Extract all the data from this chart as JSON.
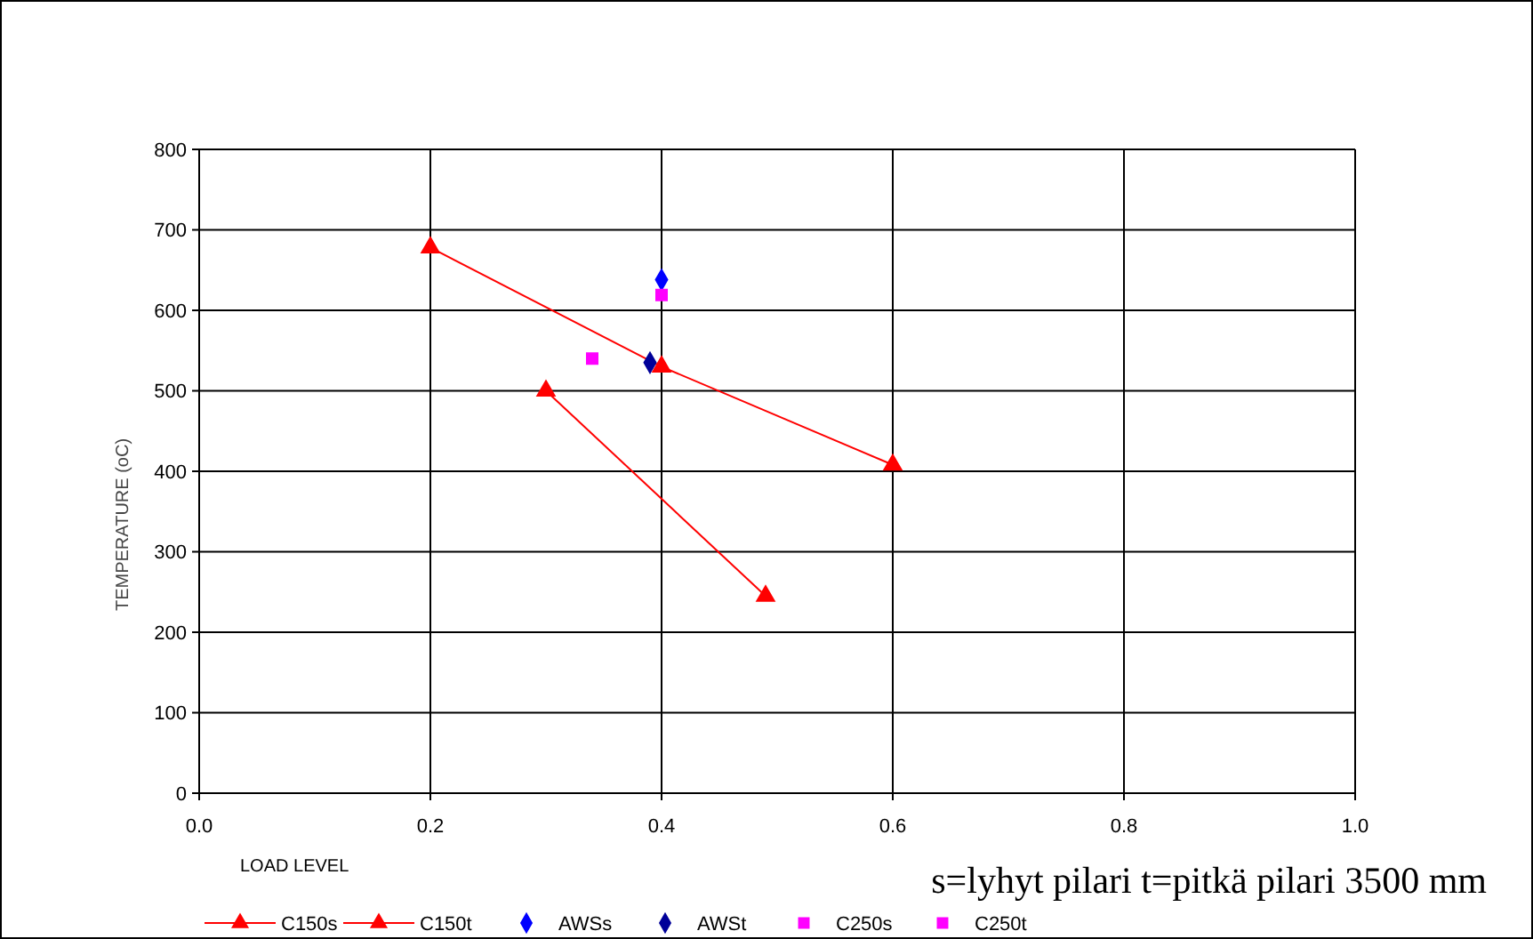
{
  "chart_data": {
    "type": "scatter",
    "xlabel": "LOAD LEVEL",
    "ylabel": "TEMPERATURE (oC)",
    "xlim": [
      0,
      1
    ],
    "xticks": [
      {
        "value": 0,
        "label": "0.0"
      },
      {
        "value": 0.2,
        "label": "0.2"
      },
      {
        "value": 0.4,
        "label": "0.4"
      },
      {
        "value": 0.6,
        "label": "0.6"
      },
      {
        "value": 0.8,
        "label": "0.8"
      },
      {
        "value": 1,
        "label": "1.0"
      }
    ],
    "ylim": [
      0,
      800
    ],
    "yticks": [
      0,
      100,
      200,
      300,
      400,
      500,
      600,
      700,
      800
    ],
    "grid": true,
    "legend": "bottom",
    "annotations": [
      "s=lyhyt pilari t=pitkä pilari 3500 mm"
    ],
    "series": [
      {
        "name": "C150s",
        "type": "line",
        "color": "#ff0000",
        "marker": "triangle",
        "x": [
          0.2,
          0.4,
          0.6
        ],
        "values": [
          678,
          530,
          408
        ]
      },
      {
        "name": "C150t",
        "type": "line",
        "color": "#ff0000",
        "marker": "triangle",
        "x": [
          0.3,
          0.49
        ],
        "values": [
          500,
          245
        ]
      },
      {
        "name": "AWSs",
        "color": "#0000ff",
        "marker": "diamond",
        "x": [
          0.4
        ],
        "values": [
          638
        ]
      },
      {
        "name": "AWSt",
        "color": "#000099",
        "marker": "diamond",
        "x": [
          0.39
        ],
        "values": [
          535
        ]
      },
      {
        "name": "C250s",
        "color": "#ff00ff",
        "marker": "square",
        "x": [
          0.4
        ],
        "values": [
          619
        ]
      },
      {
        "name": "C250t",
        "color": "#ff00ff",
        "marker": "square",
        "x": [
          0.34
        ],
        "values": [
          540
        ]
      }
    ]
  }
}
